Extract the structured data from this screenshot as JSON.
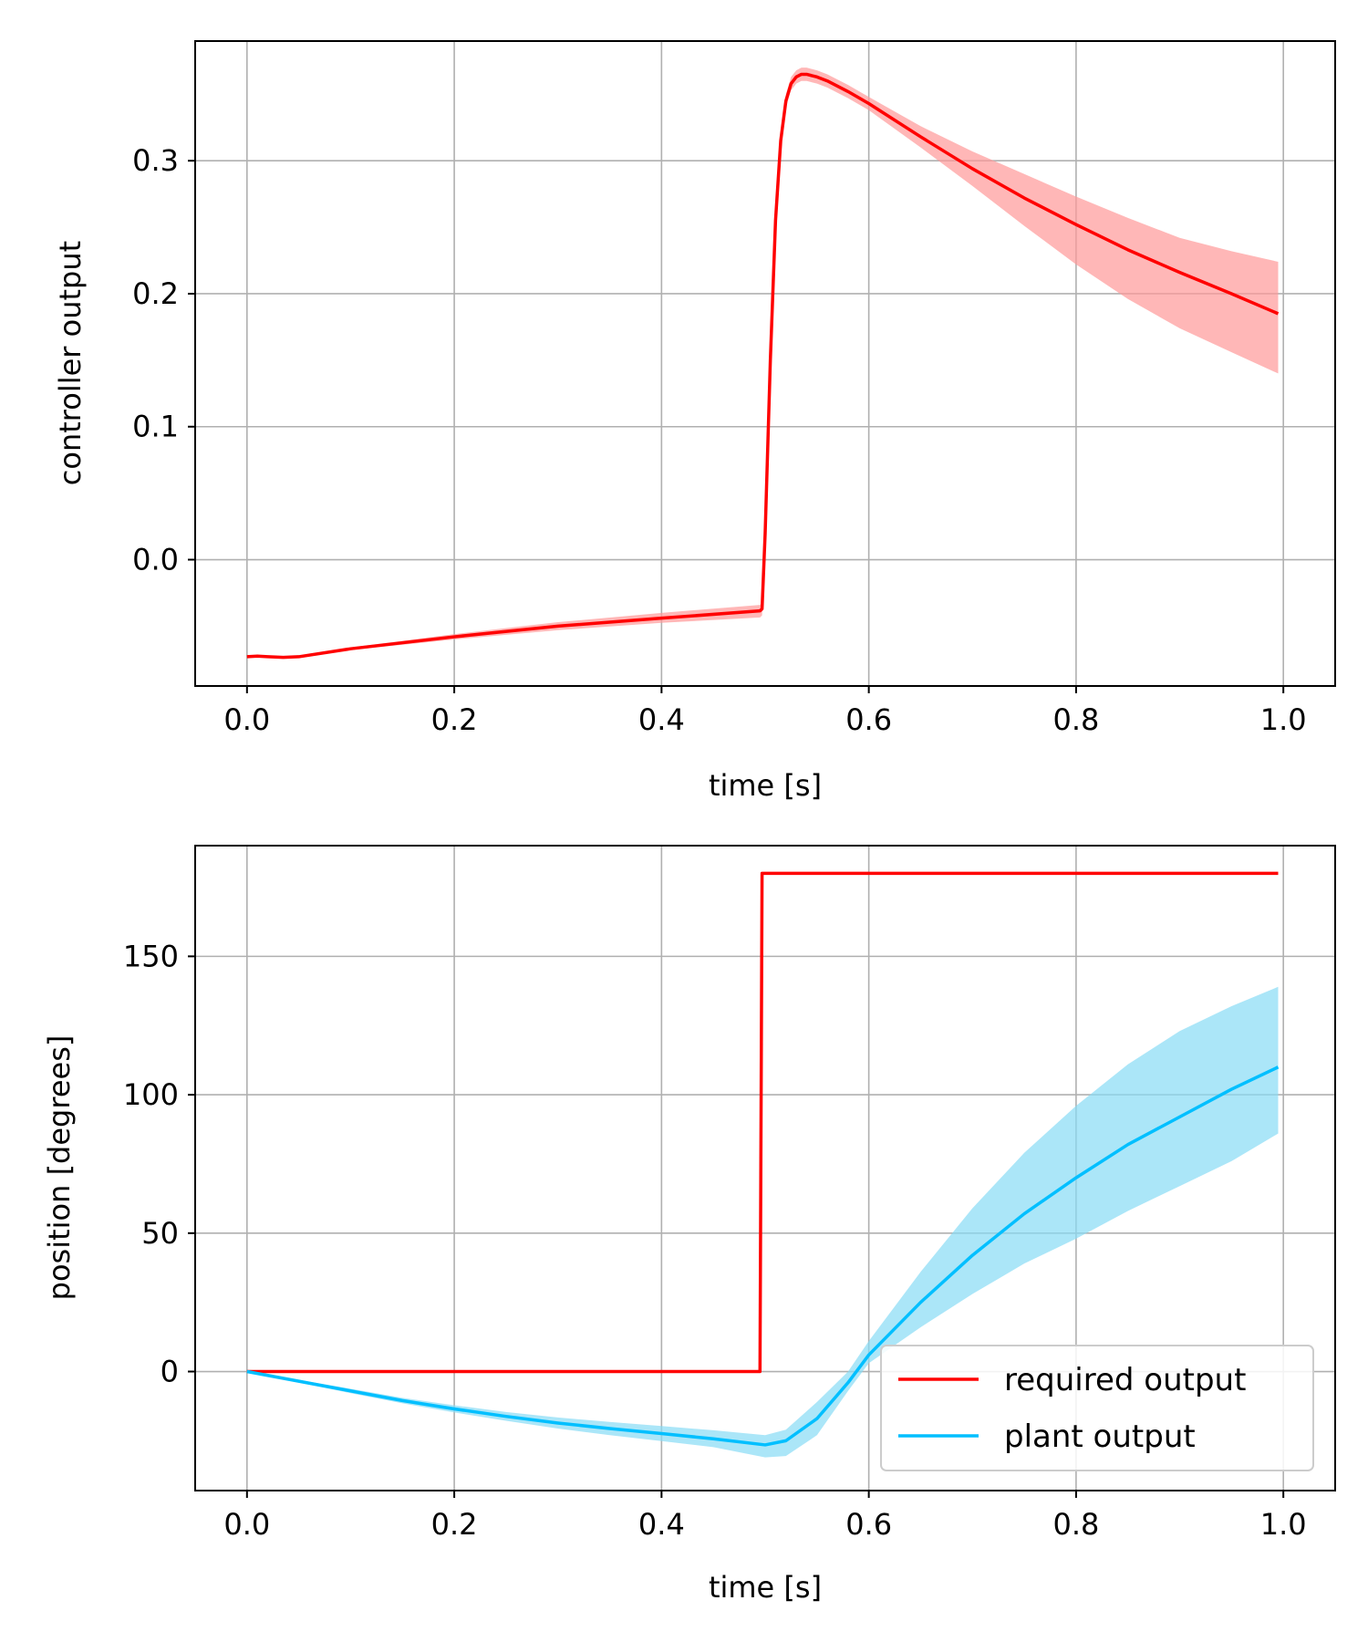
{
  "chart_data": [
    {
      "type": "line",
      "title": "",
      "xlabel": "time [s]",
      "ylabel": "controller output",
      "xlim": [
        -0.05,
        1.05
      ],
      "ylim": [
        -0.095,
        0.39
      ],
      "grid": true,
      "xticks": [
        0.0,
        0.2,
        0.4,
        0.6,
        0.8,
        1.0
      ],
      "xtick_labels": [
        "0.0",
        "0.2",
        "0.4",
        "0.6",
        "0.8",
        "1.0"
      ],
      "yticks": [
        0.0,
        0.1,
        0.2,
        0.3
      ],
      "ytick_labels": [
        "0.0",
        "0.1",
        "0.2",
        "0.3"
      ],
      "series": [
        {
          "color": "#ff0000",
          "band_color": "#ff9999",
          "x": [
            0.0,
            0.01,
            0.02,
            0.035,
            0.05,
            0.1,
            0.2,
            0.3,
            0.4,
            0.495,
            0.497,
            0.5,
            0.505,
            0.51,
            0.515,
            0.52,
            0.525,
            0.53,
            0.535,
            0.54,
            0.545,
            0.55,
            0.56,
            0.58,
            0.6,
            0.65,
            0.7,
            0.75,
            0.8,
            0.85,
            0.9,
            0.95,
            0.995
          ],
          "y": [
            -0.073,
            -0.0725,
            -0.073,
            -0.0735,
            -0.073,
            -0.067,
            -0.058,
            -0.05,
            -0.044,
            -0.0385,
            -0.037,
            0.02,
            0.15,
            0.255,
            0.315,
            0.345,
            0.358,
            0.363,
            0.365,
            0.365,
            0.364,
            0.363,
            0.36,
            0.352,
            0.343,
            0.318,
            0.294,
            0.272,
            0.252,
            0.233,
            0.216,
            0.2,
            0.185
          ],
          "lower": [
            -0.0735,
            -0.073,
            -0.0735,
            -0.074,
            -0.0735,
            -0.068,
            -0.06,
            -0.053,
            -0.0475,
            -0.0435,
            -0.042,
            0.015,
            0.145,
            0.25,
            0.31,
            0.34,
            0.353,
            0.358,
            0.36,
            0.36,
            0.359,
            0.358,
            0.355,
            0.347,
            0.338,
            0.31,
            0.281,
            0.251,
            0.222,
            0.196,
            0.174,
            0.156,
            0.14
          ],
          "upper": [
            -0.0725,
            -0.072,
            -0.0725,
            -0.073,
            -0.0725,
            -0.066,
            -0.056,
            -0.047,
            -0.04,
            -0.034,
            -0.032,
            0.025,
            0.155,
            0.26,
            0.32,
            0.35,
            0.363,
            0.368,
            0.37,
            0.37,
            0.369,
            0.368,
            0.365,
            0.357,
            0.348,
            0.326,
            0.307,
            0.29,
            0.273,
            0.257,
            0.242,
            0.232,
            0.224
          ]
        }
      ]
    },
    {
      "type": "line",
      "title": "",
      "xlabel": "time [s]",
      "ylabel": "position [degrees]",
      "xlim": [
        -0.05,
        1.05
      ],
      "ylim": [
        -43,
        190
      ],
      "grid": true,
      "xticks": [
        0.0,
        0.2,
        0.4,
        0.6,
        0.8,
        1.0
      ],
      "xtick_labels": [
        "0.0",
        "0.2",
        "0.4",
        "0.6",
        "0.8",
        "1.0"
      ],
      "yticks": [
        0,
        50,
        100,
        150
      ],
      "ytick_labels": [
        "0",
        "50",
        "100",
        "150"
      ],
      "legend_position": "lower right",
      "series": [
        {
          "name": "required output",
          "color": "#ff0000",
          "x": [
            0.0,
            0.495,
            0.497,
            0.995
          ],
          "y": [
            0,
            0,
            180,
            180
          ]
        },
        {
          "name": "plant output",
          "color": "#00bfff",
          "band_color": "#87dbf5",
          "x": [
            0.0,
            0.05,
            0.1,
            0.15,
            0.2,
            0.25,
            0.3,
            0.35,
            0.4,
            0.45,
            0.5,
            0.52,
            0.55,
            0.58,
            0.6,
            0.65,
            0.7,
            0.75,
            0.8,
            0.85,
            0.9,
            0.95,
            0.995
          ],
          "y": [
            0,
            -3.5,
            -7,
            -10.5,
            -13.5,
            -16.2,
            -18.6,
            -20.6,
            -22.4,
            -24.3,
            -26.5,
            -25,
            -17,
            -4,
            6,
            25,
            42,
            57,
            70,
            82,
            92,
            102,
            110
          ],
          "lower": [
            0,
            -4,
            -7.8,
            -11.5,
            -14.8,
            -17.8,
            -20.6,
            -23,
            -25.1,
            -27.3,
            -31,
            -30.5,
            -23,
            -7,
            3,
            16,
            28,
            39,
            48,
            58,
            67,
            76,
            86
          ],
          "upper": [
            0,
            -3,
            -6.2,
            -9.5,
            -12.2,
            -14.6,
            -16.6,
            -18.2,
            -19.7,
            -21.2,
            -23,
            -21,
            -11,
            0,
            11,
            36,
            59,
            79,
            96,
            111,
            123,
            132,
            139
          ]
        }
      ]
    }
  ]
}
